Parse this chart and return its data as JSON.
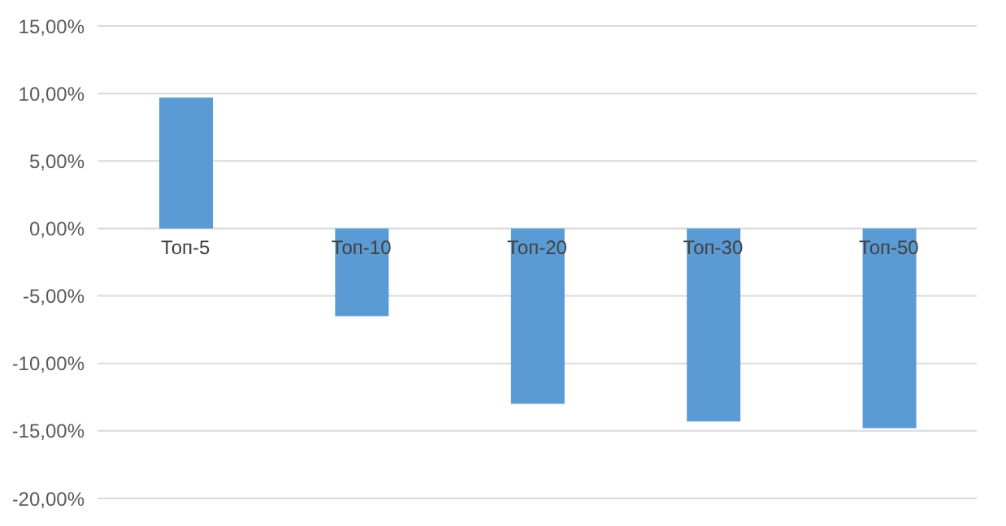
{
  "chart_data": {
    "type": "bar",
    "categories": [
      "Топ-5",
      "Топ-10",
      "Топ-20",
      "Топ-30",
      "Топ-50"
    ],
    "values": [
      9.7,
      -6.5,
      -13.0,
      -14.3,
      -14.8
    ],
    "color": "#5b9bd5",
    "ylim": [
      -20,
      15
    ],
    "yticks": [
      {
        "value": -20,
        "label": "-20,00%"
      },
      {
        "value": -15,
        "label": "-15,00%"
      },
      {
        "value": -10,
        "label": "-10,00%"
      },
      {
        "value": -5,
        "label": "-5,00%"
      },
      {
        "value": 0,
        "label": "0,00%"
      },
      {
        "value": 5,
        "label": "5,00%"
      },
      {
        "value": 10,
        "label": "10,00%"
      },
      {
        "value": 15,
        "label": "15,00%"
      }
    ],
    "grid": "y",
    "legend": false
  }
}
